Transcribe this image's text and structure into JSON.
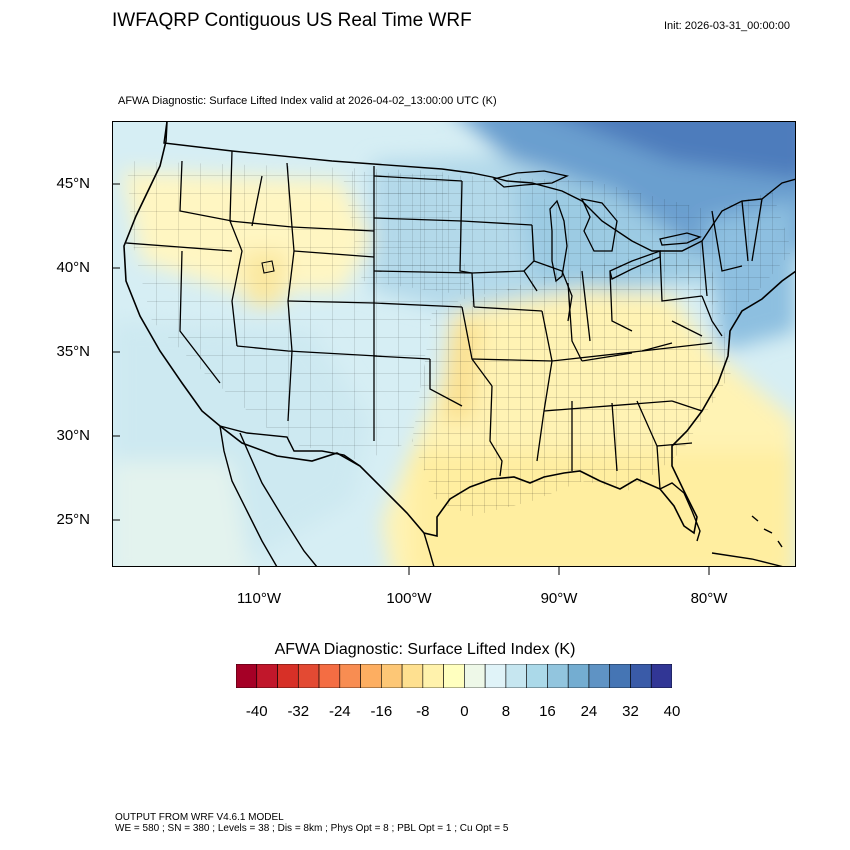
{
  "header": {
    "title": "IWFAQRP Contiguous US Real Time WRF",
    "init": "Init: 2026-03-31_00:00:00",
    "subtitle": "AFWA Diagnostic: Surface Lifted Index valid at 2026-04-02_13:00:00 UTC   (K)"
  },
  "map": {
    "lat_labels": [
      "45°N",
      "40°N",
      "35°N",
      "30°N",
      "25°N"
    ],
    "lon_labels": [
      "110°W",
      "100°W",
      "90°W",
      "80°W"
    ]
  },
  "colorbar": {
    "title": "AFWA Diagnostic: Surface Lifted Index  (K)",
    "labels": [
      "-40",
      "-32",
      "-24",
      "-16",
      "-8",
      "0",
      "8",
      "16",
      "24",
      "32",
      "40"
    ],
    "colors": [
      "#a50026",
      "#c1172b",
      "#d73027",
      "#e34a33",
      "#f46d43",
      "#f88d52",
      "#fdae61",
      "#fdc776",
      "#fee090",
      "#fff2ac",
      "#ffffbf",
      "#eef8e8",
      "#e0f3f8",
      "#c6e6f0",
      "#abd9e9",
      "#92c5de",
      "#74add1",
      "#5f93c4",
      "#4575b4",
      "#3a5ba8",
      "#313695"
    ]
  },
  "footer": {
    "line1": "OUTPUT FROM WRF V4.6.1 MODEL",
    "line2": "WE = 580 ; SN = 380 ; Levels = 38 ; Dis = 8km ; Phys Opt = 8 ; PBL Opt = 1 ; Cu Opt = 5"
  }
}
